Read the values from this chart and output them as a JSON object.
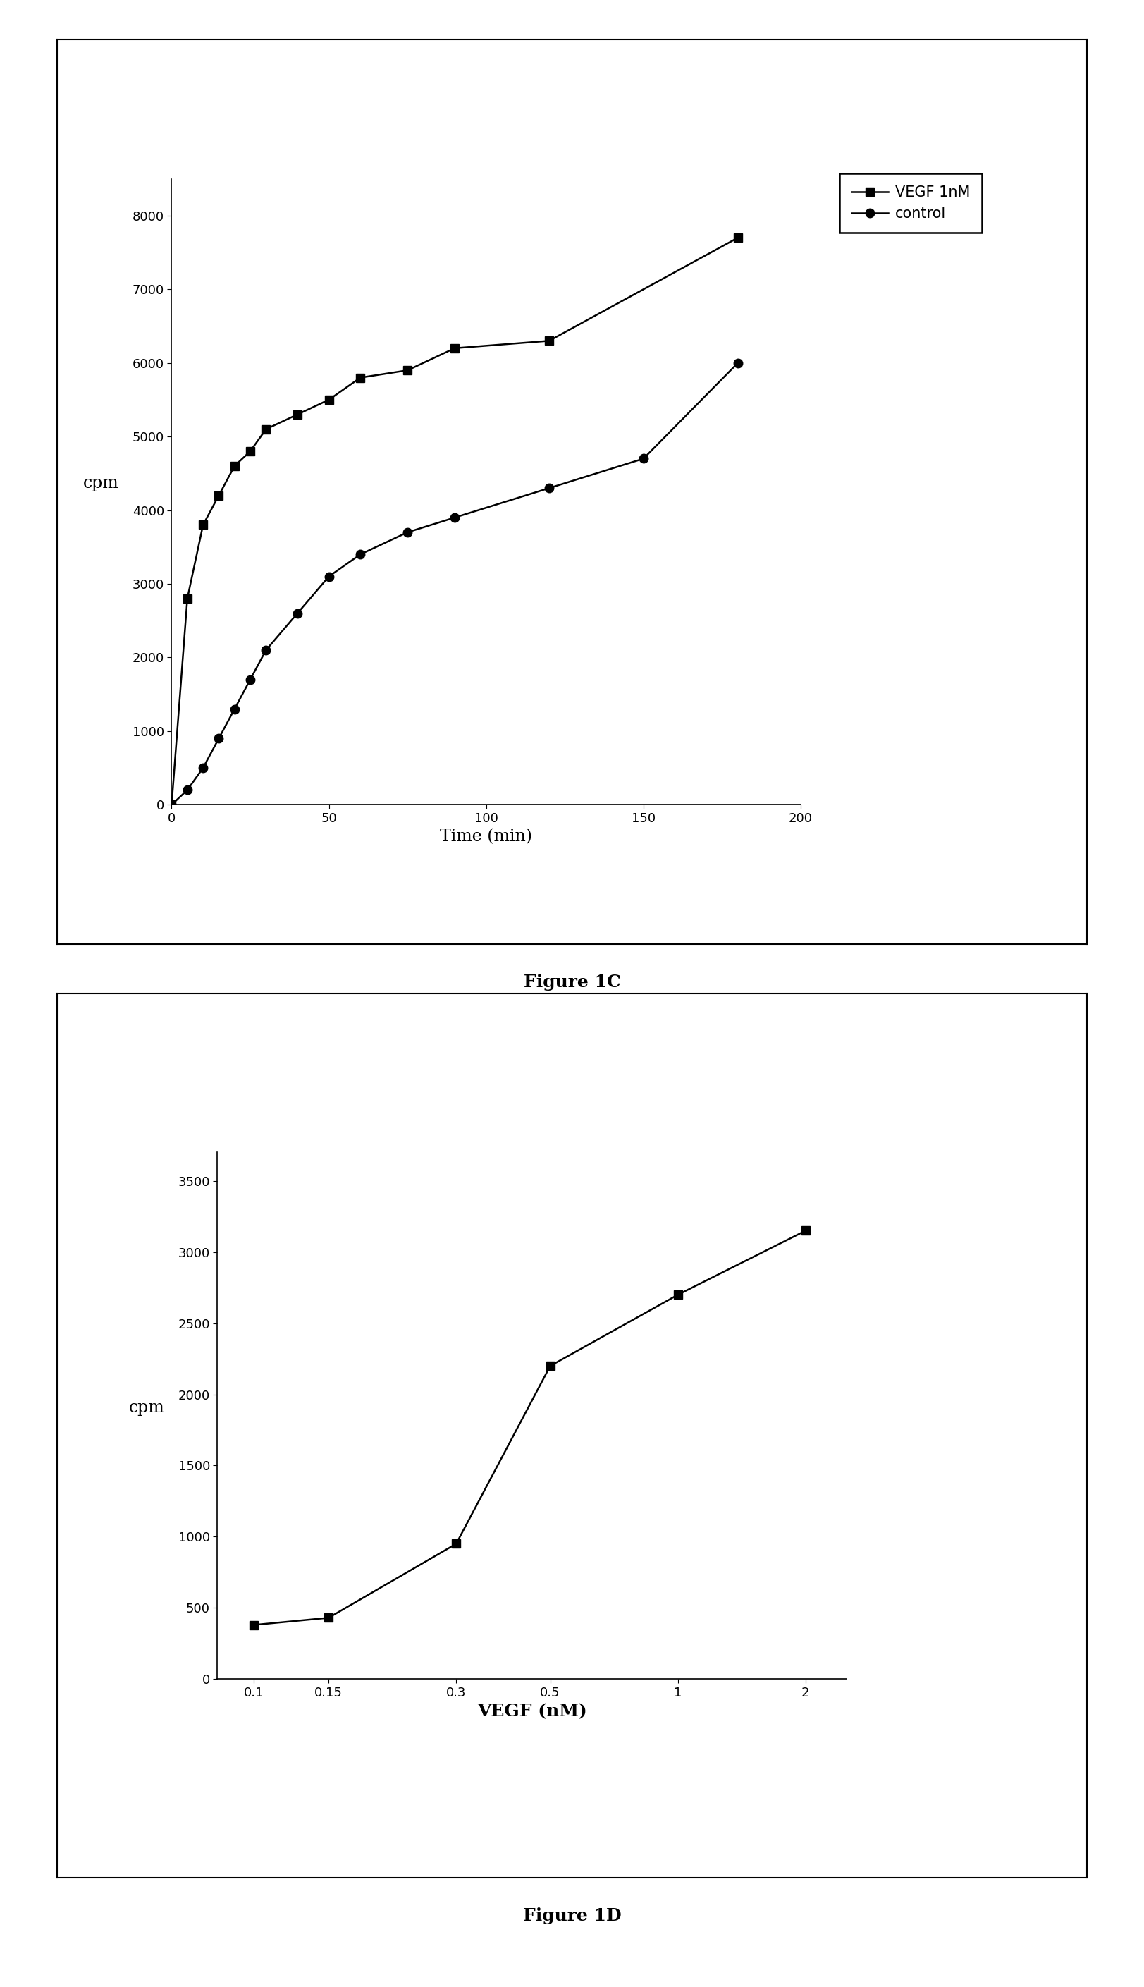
{
  "fig1c": {
    "vegf_x": [
      0,
      5,
      10,
      15,
      20,
      25,
      30,
      40,
      50,
      60,
      75,
      90,
      120,
      180
    ],
    "vegf_y": [
      0,
      2800,
      3800,
      4200,
      4600,
      4800,
      5100,
      5300,
      5500,
      5800,
      5900,
      6200,
      6300,
      7700
    ],
    "ctrl_x": [
      0,
      5,
      10,
      15,
      20,
      25,
      30,
      40,
      50,
      60,
      75,
      90,
      120,
      150,
      180
    ],
    "ctrl_y": [
      0,
      200,
      500,
      900,
      1300,
      1700,
      2100,
      2600,
      3100,
      3400,
      3700,
      3900,
      4300,
      4700,
      6000
    ],
    "ylabel": "cpm",
    "xlabel": "Time (min)",
    "ylim": [
      0,
      8500
    ],
    "xlim": [
      0,
      200
    ],
    "yticks": [
      0,
      1000,
      2000,
      3000,
      4000,
      5000,
      6000,
      7000,
      8000
    ],
    "xticks": [
      0,
      50,
      100,
      150,
      200
    ],
    "legend_labels": [
      "VEGF 1nM",
      "control"
    ],
    "caption": "Figure 1C"
  },
  "fig1d": {
    "x": [
      0.1,
      0.15,
      0.3,
      0.5,
      1,
      2
    ],
    "y": [
      380,
      430,
      950,
      2200,
      2700,
      3150
    ],
    "ylabel": "cpm",
    "xlabel": "VEGF (nM)",
    "ylim": [
      0,
      3700
    ],
    "yticks": [
      0,
      500,
      1000,
      1500,
      2000,
      2500,
      3000,
      3500
    ],
    "xticks": [
      0.1,
      0.15,
      0.3,
      0.5,
      1,
      2
    ],
    "xticklabels": [
      "0.1",
      "0.15",
      "0.3",
      "0.5",
      "1",
      "2"
    ],
    "caption": "Figure 1D"
  }
}
